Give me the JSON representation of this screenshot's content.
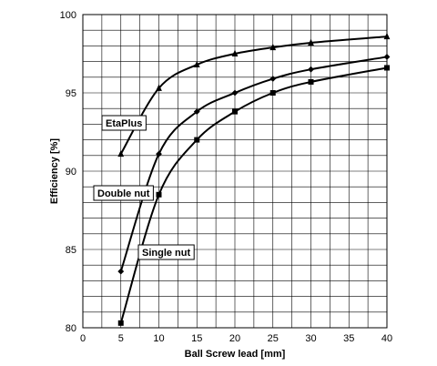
{
  "chart_data": {
    "type": "line",
    "title": "",
    "xlabel": "Ball Screw lead  [mm]",
    "ylabel": "Efficiency [%]",
    "xlim": [
      0,
      40
    ],
    "ylim": [
      80,
      100
    ],
    "x_ticks": [
      0,
      5,
      10,
      15,
      20,
      25,
      30,
      35,
      40
    ],
    "y_ticks": [
      80,
      85,
      90,
      95,
      100
    ],
    "grid": true,
    "legend": "inline labels",
    "series": [
      {
        "name": "EtaPlus",
        "marker": "triangle",
        "x": [
          5,
          10,
          15,
          20,
          25,
          30,
          40
        ],
        "values": [
          91.1,
          95.3,
          96.8,
          97.5,
          97.9,
          98.2,
          98.6
        ]
      },
      {
        "name": "Double nut",
        "marker": "diamond",
        "x": [
          5,
          10,
          15,
          20,
          25,
          30,
          40
        ],
        "values": [
          83.6,
          91.1,
          93.8,
          95.0,
          95.9,
          96.5,
          97.3
        ]
      },
      {
        "name": "Single nut",
        "marker": "square",
        "x": [
          5,
          10,
          15,
          20,
          25,
          30,
          40
        ],
        "values": [
          80.3,
          88.5,
          92.0,
          93.8,
          95.0,
          95.7,
          96.6
        ]
      }
    ],
    "colors": {
      "line": "#000000",
      "grid": "#000000",
      "label_box": "#ffffff"
    }
  }
}
